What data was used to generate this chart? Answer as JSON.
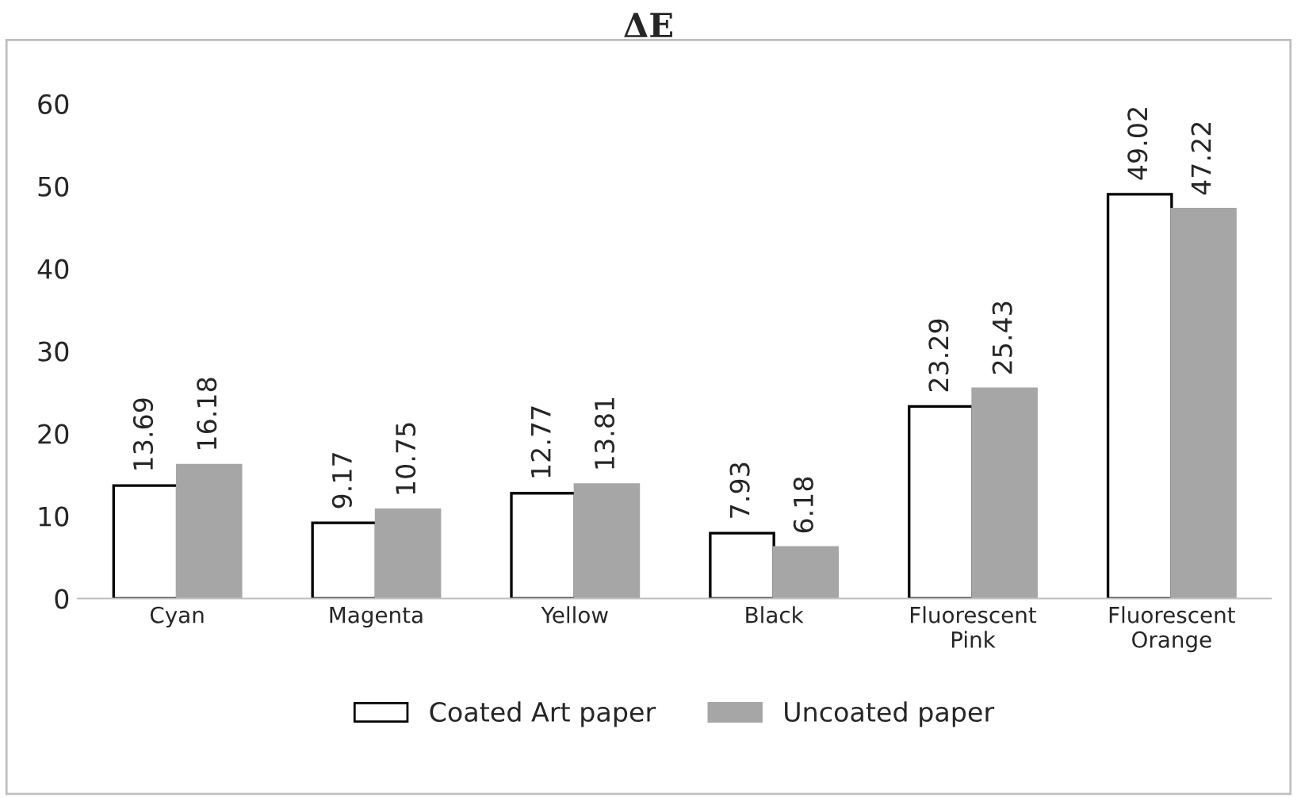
{
  "chart_data": {
    "type": "bar",
    "title": "ΔE",
    "categories": [
      "Cyan",
      "Magenta",
      "Yellow",
      "Black",
      "Fluorescent\nPink",
      "Fluorescent\nOrange"
    ],
    "series": [
      {
        "name": "Coated Art paper",
        "color": "#ffffff",
        "values": [
          13.69,
          9.17,
          12.77,
          7.93,
          23.29,
          49.02
        ]
      },
      {
        "name": "Uncoated paper",
        "color": "#a6a6a6",
        "values": [
          16.18,
          10.75,
          13.81,
          6.18,
          25.43,
          47.22
        ]
      }
    ],
    "ylim": [
      0,
      60
    ],
    "yticks": [
      0,
      10,
      20,
      30,
      40,
      50,
      60
    ],
    "grid": false,
    "legend": "bottom",
    "data_labels": true
  }
}
